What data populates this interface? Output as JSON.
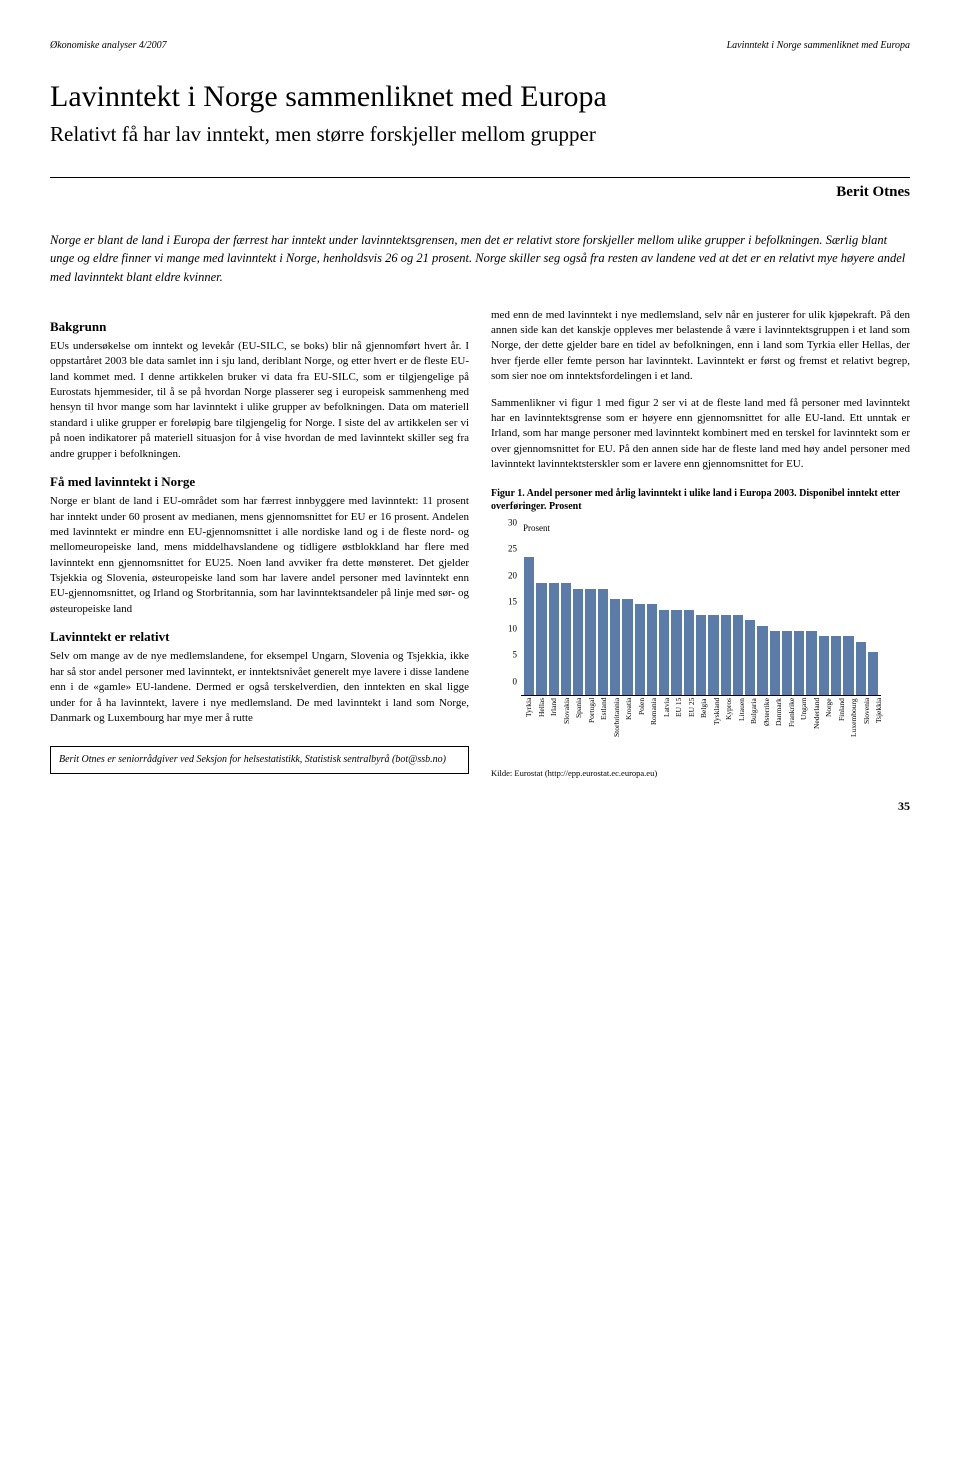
{
  "header": {
    "left": "Økonomiske analyser 4/2007",
    "right": "Lavinntekt i Norge sammenliknet med Europa"
  },
  "article": {
    "title": "Lavinntekt i Norge sammenliknet med Europa",
    "subtitle": "Relativt få har lav inntekt, men større forskjeller mellom grupper",
    "author": "Berit Otnes",
    "lede": "Norge er blant de land i Europa der færrest har inntekt under lavinntektsgrensen, men det er relativt store forskjeller mellom ulike grupper i befolkningen. Særlig blant unge og eldre finner vi mange med lavinntekt i Norge, henholdsvis 26 og 21 prosent. Norge skiller seg også fra resten av landene ved at det er en relativt mye høyere andel med lavinntekt blant eldre kvinner."
  },
  "left_column": {
    "h1": "Bakgrunn",
    "p1": "EUs undersøkelse om inntekt og levekår (EU-SILC, se boks) blir nå gjennomført hvert år. I oppstartåret 2003 ble data samlet inn i sju land, deriblant Norge, og etter hvert er de fleste EU-land kommet med. I denne artikkelen bruker vi data fra EU-SILC, som er tilgjengelige på Eurostats hjemmesider, til å se på hvordan Norge plasserer seg i europeisk sammenheng med hensyn til hvor mange som har lavinntekt i ulike grupper av befolkningen. Data om materiell standard i ulike grupper er foreløpig bare tilgjengelig for Norge. I siste del av artikkelen ser vi på noen indikatorer på materiell situasjon for å vise hvordan de med lavinntekt skiller seg fra andre grupper i befolkningen.",
    "h2": "Få med lavinntekt i Norge",
    "p2": "Norge er blant de land i EU-området som har færrest innbyggere med lavinntekt: 11 prosent har inntekt under 60 prosent av medianen, mens gjennomsnittet for EU er 16 prosent. Andelen med lavinntekt er mindre enn EU-gjennomsnittet i alle nordiske land og i de fleste nord- og mellomeuropeiske land, mens middelhavslandene og tidligere østblokkland har flere med lavinntekt enn gjennomsnittet for EU25. Noen land avviker fra dette mønsteret. Det gjelder Tsjekkia og Slovenia, østeuropeiske land som har lavere andel personer med lavinntekt enn EU-gjennomsnittet, og Irland og Storbritannia, som har lavinntektsandeler på linje med sør- og østeuropeiske land",
    "h3": "Lavinntekt er relativt",
    "p3": "Selv om mange av de nye medlemslandene, for eksempel Ungarn, Slovenia og Tsjekkia, ikke har så stor andel personer med lavinntekt, er inntektsnivået generelt mye lavere i disse landene enn i de «gamle» EU-landene. Dermed er også terskelverdien, den inntekten en skal ligge under for å ha lavinntekt, lavere i nye medlemsland. De med lavinntekt i land som Norge, Danmark og Luxembourg har mye mer å rutte",
    "author_note": "Berit Otnes er seniorrådgiver ved Seksjon for helsestatistikk, Statistisk sentralbyrå (bot@ssb.no)"
  },
  "right_column": {
    "p1": "med enn de med lavinntekt i nye medlemsland, selv når en justerer for ulik kjøpekraft. På den annen side kan det kanskje oppleves mer belastende å være i lavinntektsgruppen i et land som Norge, der dette gjelder bare en tidel av befolkningen, enn i land som Tyrkia eller Hellas, der hver fjerde eller femte person har lavinntekt. Lavinntekt er først og fremst et relativt begrep, som sier noe om inntektsfordelingen i et land.",
    "p2": "Sammenlikner vi figur 1 med figur 2 ser vi at de fleste land med få personer med lavinntekt har en lavinntektsgrense som er høyere enn gjennomsnittet for alle EU-land. Ett unntak er Irland, som har mange personer med lavinntekt kombinert med en terskel for lavinntekt som er over gjennomsnittet for EU. På den annen side har de fleste land med høy andel personer med lavinntekt lavinntektsterskler som er lavere enn gjennomsnittet for EU."
  },
  "figure": {
    "caption": "Figur 1. Andel personer med årlig lavinntekt i ulike land i Europa 2003. Disponibel inntekt etter overføringer. Prosent",
    "y_axis_label": "Prosent",
    "y_ticks": [
      0,
      5,
      10,
      15,
      20,
      25,
      30
    ],
    "ylim": [
      0,
      30
    ],
    "bar_color": "#5b7ba8",
    "background_color": "#ffffff",
    "categories": [
      "Tyrkia",
      "Hellas",
      "Irland",
      "Slovakia",
      "Spania",
      "Portugal",
      "Estland",
      "Storbritannia",
      "Kroatia",
      "Polen",
      "Romania",
      "Latvia",
      "EU 15",
      "EU 25",
      "Belgia",
      "Tyskland",
      "Kypros",
      "Litauen",
      "Bulgaria",
      "Østerrike",
      "Danmark",
      "Frankrike",
      "Ungarn",
      "Nederland",
      "Norge",
      "Finland",
      "Luxembourg",
      "Slovenia",
      "Tsjekkia"
    ],
    "values": [
      26,
      21,
      21,
      21,
      20,
      20,
      20,
      18,
      18,
      17,
      17,
      16,
      16,
      16,
      15,
      15,
      15,
      15,
      14,
      13,
      12,
      12,
      12,
      12,
      11,
      11,
      11,
      10,
      8
    ],
    "source": "Kilde: Eurostat (http://epp.eurostat.ec.europa.eu)"
  },
  "page_number": "35"
}
